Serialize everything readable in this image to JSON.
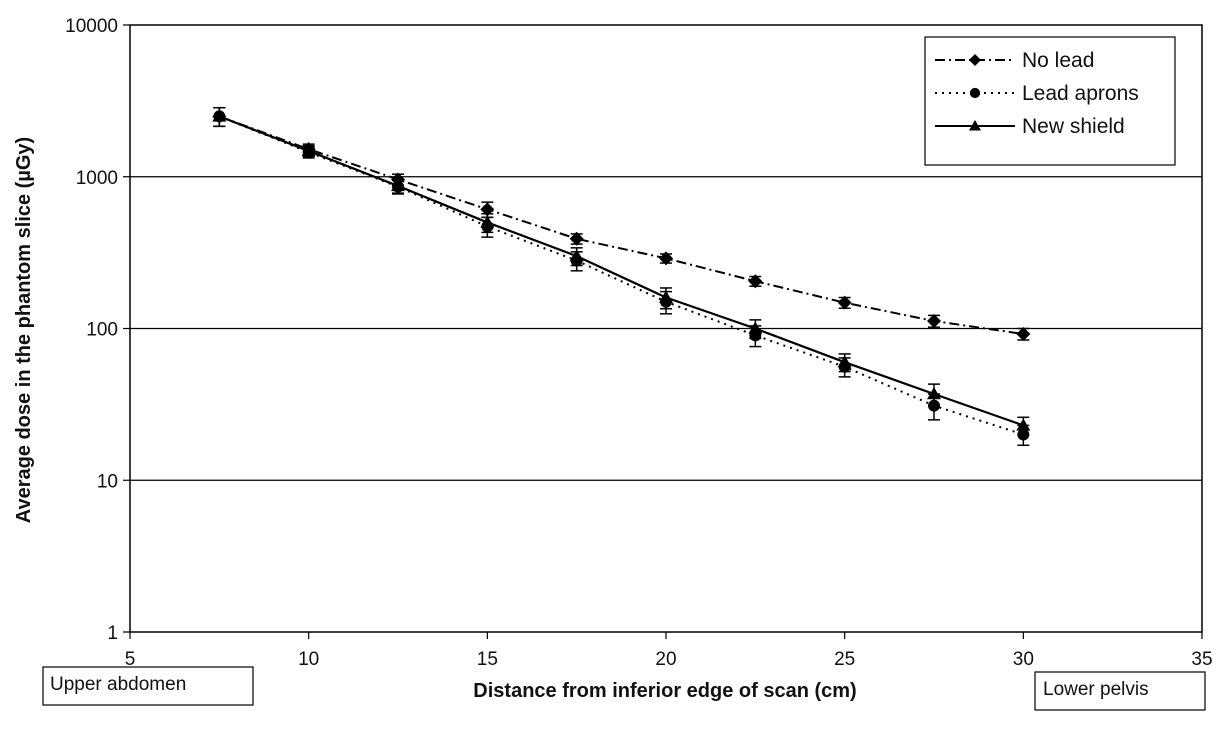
{
  "chart_data": {
    "type": "line",
    "title": "",
    "xlabel": "Distance from inferior edge of scan (cm)",
    "ylabel": "Average dose in the phantom slice (µGy)",
    "xlim": [
      5,
      35
    ],
    "ylim": [
      1,
      10000
    ],
    "yscale": "log",
    "x_ticks": [
      "5",
      "10",
      "15",
      "20",
      "25",
      "30",
      "35"
    ],
    "y_ticks": [
      "1",
      "10",
      "100",
      "1000",
      "10000"
    ],
    "grid": "horizontal major gridlines",
    "legend_position": "top-right",
    "annotations": {
      "left": "Upper abdomen",
      "right": "Lower pelvis"
    },
    "series": [
      {
        "name": "No lead",
        "line_style": "dash-dot",
        "marker": "diamond",
        "x": [
          7.5,
          10,
          12.5,
          15,
          17.5,
          20,
          22.5,
          25,
          27.5,
          30
        ],
        "y": [
          2500,
          1520,
          960,
          610,
          390,
          290,
          205,
          148,
          112,
          92
        ],
        "error": [
          350,
          120,
          80,
          70,
          30,
          20,
          15,
          12,
          10,
          8
        ]
      },
      {
        "name": "Lead aprons",
        "line_style": "dotted",
        "marker": "circle",
        "x": [
          7.5,
          10,
          12.5,
          15,
          17.5,
          20,
          22.5,
          25,
          27.5,
          30
        ],
        "y": [
          2500,
          1450,
          860,
          470,
          280,
          150,
          90,
          56,
          31,
          20
        ],
        "error": [
          350,
          120,
          90,
          70,
          40,
          25,
          14,
          8,
          6,
          3
        ]
      },
      {
        "name": "New shield",
        "line_style": "solid",
        "marker": "triangle",
        "x": [
          7.5,
          10,
          12.5,
          15,
          17.5,
          20,
          22.5,
          25,
          27.5,
          30
        ],
        "y": [
          2500,
          1480,
          870,
          500,
          300,
          160,
          100,
          60,
          37,
          23
        ],
        "error": [
          350,
          120,
          90,
          70,
          40,
          25,
          14,
          8,
          6,
          3
        ]
      }
    ]
  }
}
